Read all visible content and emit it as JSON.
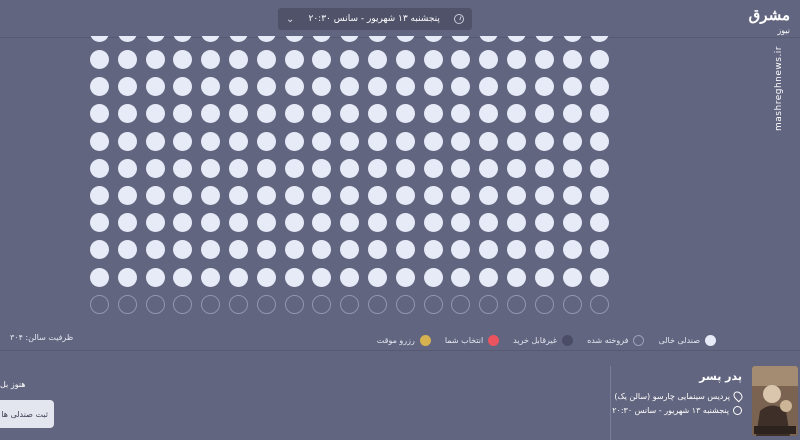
{
  "header": {
    "showtime": "پنجشنبه ۱۳ شهریور - سانس ۲۰:۳۰",
    "brand": "مشرق",
    "brand_small": "نیوز",
    "watermark": "mashreghnews.ir"
  },
  "seats": {
    "columns": 19,
    "full_rows": 9,
    "partial_rows_top": 1,
    "outline_rows_bottom": 1
  },
  "legend": [
    {
      "label": "صندلی خالی",
      "kind": "empty"
    },
    {
      "label": "فروخته شده",
      "kind": "sold"
    },
    {
      "label": "غیرقابل خرید",
      "kind": "na"
    },
    {
      "label": "انتخاب شما",
      "kind": "sel"
    },
    {
      "label": "رزرو موقت",
      "kind": "res"
    }
  ],
  "capacity": "ظرفیت سالن: ۳۰۴",
  "movie": {
    "title": "پدر پسر",
    "cinema": "پردیس سینمایی چارسو (سالن یک)",
    "datetime": "پنجشنبه ۱۳ شهریور - سانس ۲۰:۳۰"
  },
  "left_note": "هنوز بل",
  "submit_label": "ثبت صندلی ها"
}
